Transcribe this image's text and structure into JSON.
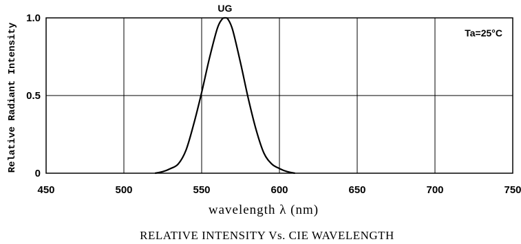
{
  "chart_data": {
    "type": "line",
    "title": "RELATIVE INTENSITY Vs. CIE WAVELENGTH",
    "xlabel": "wavelength λ (nm)",
    "ylabel": "Relative Radiant Intensity",
    "xlim": [
      450,
      750
    ],
    "ylim": [
      0,
      1.0
    ],
    "x_ticks": [
      450,
      500,
      550,
      600,
      650,
      700,
      750
    ],
    "x_tick_labels": [
      "450",
      "500",
      "550",
      "600",
      "650",
      "700",
      "750"
    ],
    "y_ticks": [
      0,
      0.5,
      1.0
    ],
    "y_tick_labels": [
      "0",
      "0.5",
      "1.0"
    ],
    "grid": true,
    "annotation": "Ta=25°C",
    "series": [
      {
        "name": "UG",
        "x": [
          520,
          525,
          530,
          535,
          540,
          545,
          550,
          555,
          560,
          563,
          565,
          567,
          570,
          575,
          580,
          585,
          590,
          595,
          600,
          605,
          610
        ],
        "y": [
          0,
          0.01,
          0.03,
          0.06,
          0.15,
          0.32,
          0.52,
          0.74,
          0.93,
          0.99,
          1.0,
          0.99,
          0.92,
          0.71,
          0.48,
          0.28,
          0.13,
          0.06,
          0.03,
          0.01,
          0
        ]
      }
    ]
  }
}
